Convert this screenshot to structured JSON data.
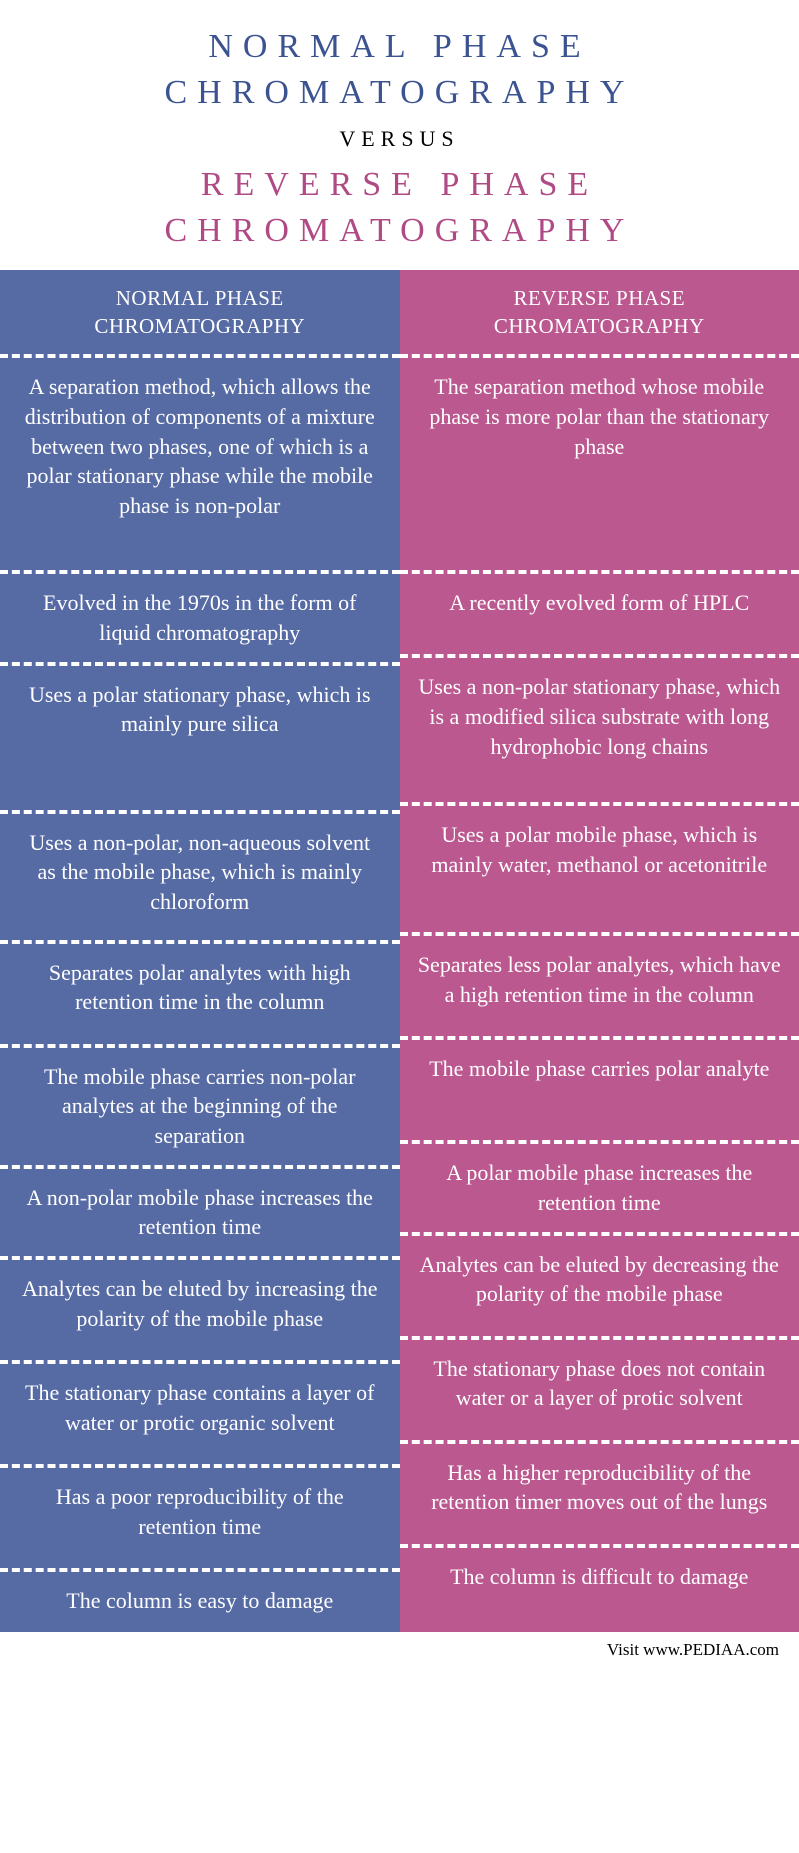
{
  "header": {
    "title_left_line1": "NORMAL PHASE",
    "title_left_line2": "CHROMATOGRAPHY",
    "versus": "VERSUS",
    "title_right_line1": "REVERSE PHASE",
    "title_right_line2": "CHROMATOGRAPHY",
    "title_left_color": "#3b5391",
    "title_right_color": "#b04a84"
  },
  "columns": {
    "left": {
      "header": "NORMAL PHASE CHROMATOGRAPHY",
      "bg_color": "#566aa4",
      "cells": [
        "A separation method, which allows the distribution of components of a mixture between two phases, one of which is a polar stationary phase while the mobile phase is non-polar",
        "Evolved in the 1970s in the form of liquid chromatography",
        "Uses a polar stationary phase, which is mainly pure silica",
        "Uses a non-polar, non-aqueous solvent as the mobile phase, which is mainly chloroform",
        "Separates polar analytes with high retention time in the column",
        "The mobile phase carries non-polar analytes at the beginning of the separation",
        "A non-polar mobile phase increases the retention time",
        "Analytes can be eluted by increasing the polarity of the mobile phase",
        "The stationary phase contains a layer of water or protic organic solvent",
        "Has a poor reproducibility of the retention time",
        "The column is easy to damage"
      ],
      "heights": [
        216,
        84,
        148,
        130,
        104,
        104,
        80,
        104,
        104,
        104,
        64
      ]
    },
    "right": {
      "header": "REVERSE PHASE CHROMATOGRAPHY",
      "bg_color": "#bb588f",
      "cells": [
        "The separation method whose mobile phase is more polar than the stationary phase",
        "A recently evolved form of HPLC",
        "Uses a non-polar stationary phase, which is a modified silica substrate with long hydrophobic long chains",
        "Uses a polar mobile phase, which is mainly water, methanol or acetonitrile",
        "Separates less polar analytes, which have a high retention time in the column",
        "The mobile phase carries polar analyte",
        "A polar mobile phase increases the retention time",
        "Analytes can be eluted by decreasing the polarity of the mobile phase",
        "The stationary phase does not contain water or a layer of protic solvent",
        "Has a higher reproducibility of the retention timer moves out of the lungs",
        "The column is difficult to damage"
      ],
      "heights": [
        216,
        84,
        148,
        130,
        104,
        104,
        80,
        104,
        104,
        104,
        64
      ]
    }
  },
  "footer": {
    "text": "Visit www.PEDIAA.com"
  }
}
